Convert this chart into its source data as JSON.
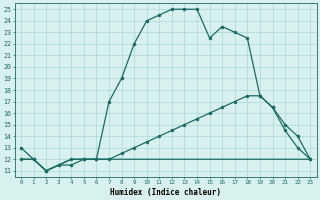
{
  "xlabel": "Humidex (Indice chaleur)",
  "bg_color": "#d8f0ee",
  "grid_color": "#aad8d4",
  "line_color": "#1a6b65",
  "xlim": [
    -0.5,
    23.5
  ],
  "ylim": [
    10.5,
    25.5
  ],
  "xticks": [
    0,
    1,
    2,
    3,
    4,
    5,
    6,
    7,
    8,
    9,
    10,
    11,
    12,
    13,
    14,
    15,
    16,
    17,
    18,
    19,
    20,
    21,
    22,
    23
  ],
  "yticks": [
    11,
    12,
    13,
    14,
    15,
    16,
    17,
    18,
    19,
    20,
    21,
    22,
    23,
    24,
    25
  ],
  "line1_x": [
    0,
    1,
    2,
    3,
    4,
    5,
    6,
    7,
    8,
    9,
    10,
    11,
    12,
    13,
    14,
    15,
    16,
    17,
    18,
    19,
    20,
    21,
    22,
    23
  ],
  "line1_y": [
    13,
    12,
    11,
    11.5,
    11.5,
    12,
    12,
    17,
    19,
    22,
    24,
    24.5,
    25,
    25,
    25,
    22.5,
    23.5,
    23,
    22.5,
    17.5,
    16.5,
    14.5,
    13,
    12
  ],
  "line2_x": [
    0,
    1,
    2,
    3,
    4,
    5,
    6,
    7,
    8,
    9,
    10,
    11,
    12,
    13,
    14,
    15,
    16,
    17,
    18,
    19,
    20,
    21,
    22,
    23
  ],
  "line2_y": [
    12,
    12,
    11,
    11.5,
    12,
    12,
    12,
    12,
    12.5,
    13,
    13.5,
    14,
    14.5,
    15,
    15.5,
    16,
    16.5,
    17,
    17.5,
    17.5,
    16.5,
    15,
    14,
    12
  ],
  "line3_x": [
    0,
    1,
    2,
    3,
    4,
    5,
    6,
    7,
    8,
    9,
    10,
    11,
    12,
    13,
    14,
    15,
    16,
    17,
    18,
    19,
    20,
    21,
    22,
    23
  ],
  "line3_y": [
    12,
    12,
    11,
    11.5,
    12,
    12,
    12,
    12,
    12,
    12,
    12,
    12,
    12,
    12,
    12,
    12,
    12,
    12,
    12,
    12,
    12,
    12,
    12,
    12
  ],
  "marker_size": 2.0,
  "line_width": 0.9
}
